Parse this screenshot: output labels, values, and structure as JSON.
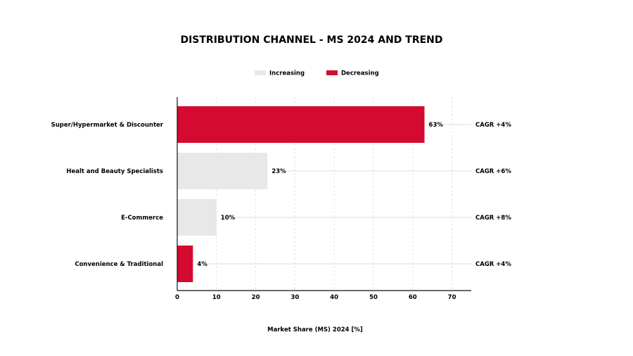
{
  "chart_data": {
    "type": "bar",
    "orientation": "horizontal",
    "title": "DISTRIBUTION CHANNEL - MS 2024 AND TREND",
    "xlabel": "Market Share (MS) 2024 [%]",
    "ylabel": "",
    "xlim": [
      0,
      74
    ],
    "xticks": [
      0,
      10,
      20,
      30,
      40,
      50,
      60,
      70
    ],
    "grid": "vertical dashed",
    "legend_position": "top-center",
    "legend": [
      {
        "name": "Increasing",
        "color": "#e8e8e8"
      },
      {
        "name": "Decreasing",
        "color": "#d50a30"
      }
    ],
    "categories": [
      "Super/Hypermarket & Discounter",
      "Healt and Beauty Specialists",
      "E-Commerce",
      "Convenience & Traditional"
    ],
    "values": [
      63,
      23,
      10,
      4
    ],
    "value_labels": [
      "63%",
      "23%",
      "10%",
      "4%"
    ],
    "trend": [
      "Decreasing",
      "Increasing",
      "Increasing",
      "Decreasing"
    ],
    "cagr_labels": [
      "CAGR +4%",
      "CAGR +6%",
      "CAGR +8%",
      "CAGR +4%"
    ]
  }
}
